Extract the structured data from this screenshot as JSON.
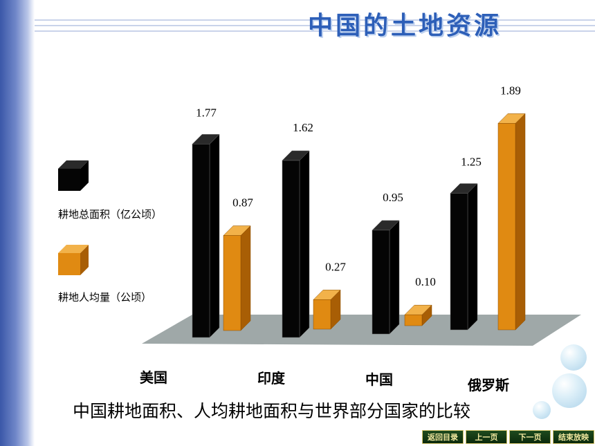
{
  "page_title": "中国的土地资源",
  "legend": [
    {
      "label": "耕地总面积（亿公顷）",
      "color": "#000000"
    },
    {
      "label": "耕地人均量（公顷）",
      "color": "#e08a12"
    }
  ],
  "chart_data": {
    "type": "bar",
    "categories": [
      "美国",
      "印度",
      "中国",
      "俄罗斯"
    ],
    "series": [
      {
        "name": "耕地总面积（亿公顷）",
        "values": [
          1.77,
          1.62,
          0.95,
          1.25
        ],
        "labels": [
          "1.77",
          "1.62",
          "0.95",
          "1.25"
        ]
      },
      {
        "name": "耕地人均量（公顷）",
        "values": [
          0.87,
          0.27,
          0.1,
          1.89
        ],
        "labels": [
          "0.87",
          "0.27",
          "0.10",
          "1.89"
        ]
      }
    ],
    "title": "中国耕地面积、人均耕地面积与世界部分国家的比较",
    "xlabel": "",
    "ylabel": "",
    "grid": false,
    "legend_position": "left"
  },
  "nav": {
    "back_to_contents": "返回目录",
    "prev_page": "上一页",
    "next_page": "下一页",
    "end_show": "结束放映"
  }
}
